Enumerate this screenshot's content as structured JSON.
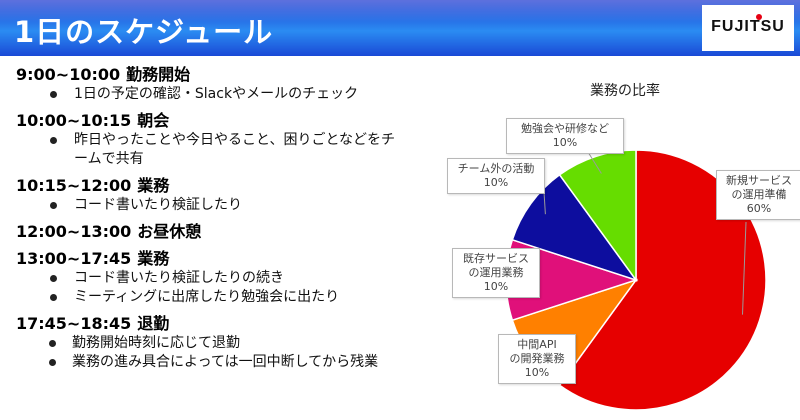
{
  "header": {
    "title": "1日のスケジュール",
    "logo_text": "FUJITSU"
  },
  "schedule": [
    {
      "time": "9:00~10:00",
      "label": "勤務開始",
      "items": [
        "1日の予定の確認・Slackやメールのチェック"
      ]
    },
    {
      "time": "10:00~10:15",
      "label": "朝会",
      "items": [
        "昨日やったことや今日やること、困りごとなどをチームで共有"
      ]
    },
    {
      "time": "10:15~12:00",
      "label": "業務",
      "items": [
        "コード書いたり検証したり"
      ]
    },
    {
      "time": "12:00~13:00",
      "label": "お昼休憩",
      "items": []
    },
    {
      "time": "13:00~17:45",
      "label": "業務",
      "items": [
        "コード書いたり検証したりの続き",
        "ミーティングに出席したり勉強会に出たり"
      ]
    },
    {
      "time": "17:45~18:45",
      "label": "退勤",
      "items": [
        "勤務開始時刻に応じて退勤",
        "業務の進み具合によっては一回中断してから残業"
      ]
    }
  ],
  "chart_data": {
    "type": "pie",
    "title": "業務の比率",
    "slices": [
      {
        "label": "新規サービスの運用準備",
        "value": 60,
        "percent_label": "60%",
        "color": "#e60000"
      },
      {
        "label": "中間APIの開発業務",
        "value": 10,
        "percent_label": "10%",
        "color": "#ff8000"
      },
      {
        "label": "既存サービスの運用業務",
        "value": 10,
        "percent_label": "10%",
        "color": "#e0107a"
      },
      {
        "label": "チーム外の活動",
        "value": 10,
        "percent_label": "10%",
        "color": "#0d0d9e"
      },
      {
        "label": "勉強会や研修など",
        "value": 10,
        "percent_label": "10%",
        "color": "#66dd00"
      }
    ]
  }
}
